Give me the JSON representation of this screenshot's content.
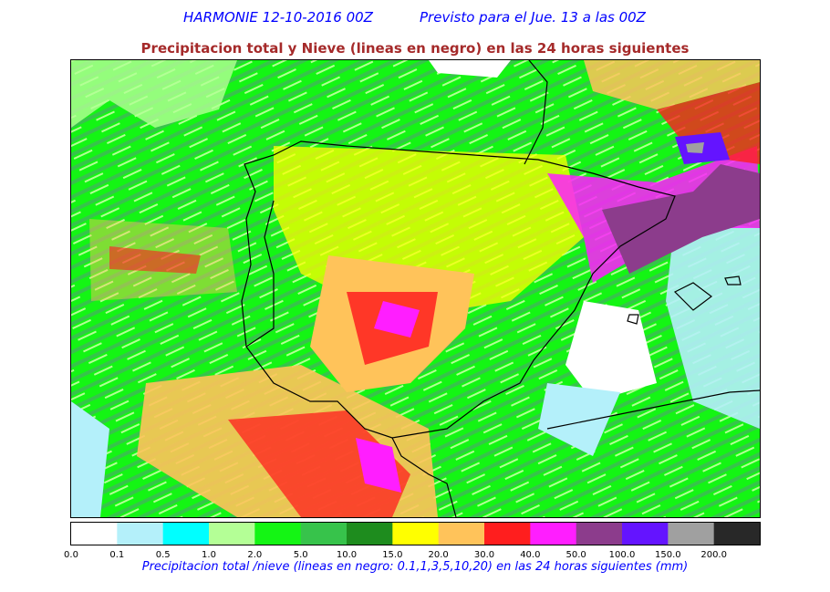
{
  "header": {
    "model": "HARMONIE 12-10-2016 00Z",
    "forecast": "Previsto para el Jue. 13 a las 00Z",
    "title": "Precipitacion total y Nieve (lineas en negro) en las 24 horas siguientes"
  },
  "legend": {
    "levels": [
      "0.0",
      "0.1",
      "0.5",
      "1.0",
      "2.0",
      "5.0",
      "10.0",
      "15.0",
      "20.0",
      "30.0",
      "40.0",
      "50.0",
      "100.0",
      "150.0",
      "200.0"
    ],
    "colors": [
      "#ffffff",
      "#b4f0fa",
      "#00ffff",
      "#b4ff96",
      "#14f514",
      "#37c34b",
      "#1e8c1e",
      "#ffff00",
      "#ffc35a",
      "#ff1e1e",
      "#ff1eff",
      "#8c3c8c",
      "#6414ff",
      "#a0a0a0",
      "#282828"
    ],
    "caption": "Precipitacion total /nieve (lineas en negro: 0.1,1,3,5,10,20) en las 24 horas siguientes (mm)"
  }
}
